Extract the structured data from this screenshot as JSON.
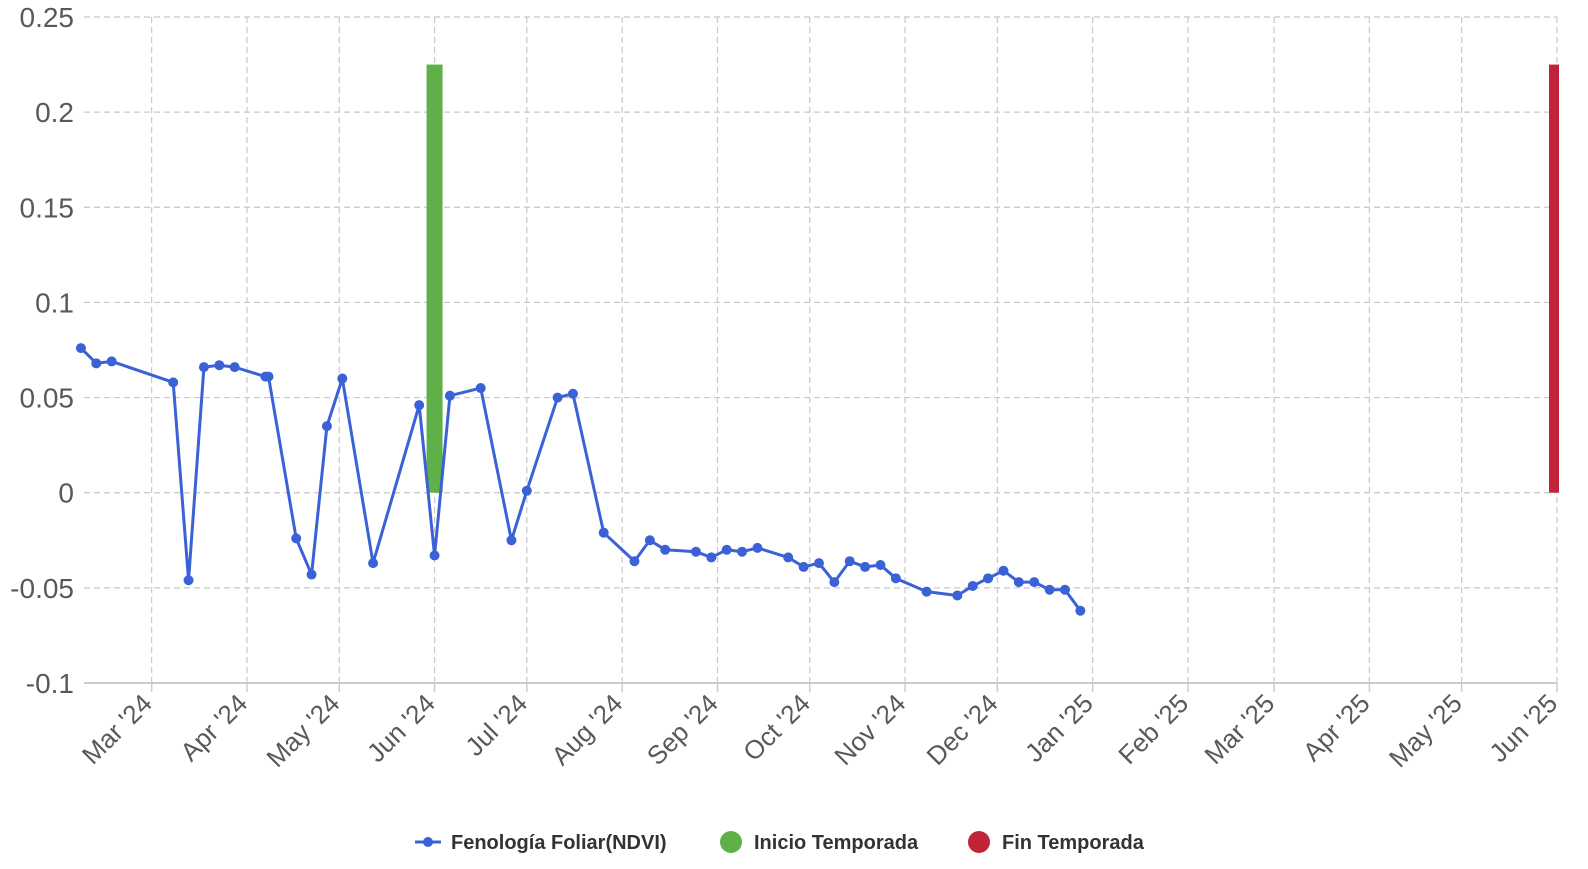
{
  "chart_data": {
    "type": "line",
    "ylim": [
      -0.1,
      0.25
    ],
    "yticks": [
      -0.1,
      -0.05,
      0,
      0.05,
      0.1,
      0.15,
      0.2,
      0.25
    ],
    "ytick_labels": [
      "-0.1",
      "-0.05",
      "0",
      "0.05",
      "0.1",
      "0.15",
      "0.2",
      "0.25"
    ],
    "xlim": [
      "2024-02-08",
      "2025-06-01"
    ],
    "xticks": [
      {
        "date": "2024-03-01",
        "label": "Mar '24"
      },
      {
        "date": "2024-04-01",
        "label": "Apr '24"
      },
      {
        "date": "2024-05-01",
        "label": "May '24"
      },
      {
        "date": "2024-06-01",
        "label": "Jun '24"
      },
      {
        "date": "2024-07-01",
        "label": "Jul '24"
      },
      {
        "date": "2024-08-01",
        "label": "Aug '24"
      },
      {
        "date": "2024-09-01",
        "label": "Sep '24"
      },
      {
        "date": "2024-10-01",
        "label": "Oct '24"
      },
      {
        "date": "2024-11-01",
        "label": "Nov '24"
      },
      {
        "date": "2024-12-01",
        "label": "Dec '24"
      },
      {
        "date": "2025-01-01",
        "label": "Jan '25"
      },
      {
        "date": "2025-02-01",
        "label": "Feb '25"
      },
      {
        "date": "2025-03-01",
        "label": "Mar '25"
      },
      {
        "date": "2025-04-01",
        "label": "Apr '25"
      },
      {
        "date": "2025-05-01",
        "label": "May '25"
      },
      {
        "date": "2025-06-01",
        "label": "Jun '25"
      }
    ],
    "grid": true,
    "legend_position": "bottom",
    "series": [
      {
        "name": "Fenología Foliar(NDVI)",
        "type": "line",
        "color": "#3a62d6",
        "points": [
          [
            "2024-02-07",
            0.076
          ],
          [
            "2024-02-12",
            0.068
          ],
          [
            "2024-02-17",
            0.069
          ],
          [
            "2024-03-08",
            0.058
          ],
          [
            "2024-03-13",
            -0.046
          ],
          [
            "2024-03-18",
            0.066
          ],
          [
            "2024-03-23",
            0.067
          ],
          [
            "2024-03-28",
            0.066
          ],
          [
            "2024-04-07",
            0.061
          ],
          [
            "2024-04-08",
            0.061
          ],
          [
            "2024-04-17",
            -0.024
          ],
          [
            "2024-04-22",
            -0.043
          ],
          [
            "2024-04-27",
            0.035
          ],
          [
            "2024-05-02",
            0.06
          ],
          [
            "2024-05-12",
            -0.037
          ],
          [
            "2024-05-27",
            0.046
          ],
          [
            "2024-06-01",
            -0.033
          ],
          [
            "2024-06-06",
            0.051
          ],
          [
            "2024-06-16",
            0.055
          ],
          [
            "2024-06-26",
            -0.025
          ],
          [
            "2024-07-01",
            0.001
          ],
          [
            "2024-07-11",
            0.05
          ],
          [
            "2024-07-16",
            0.052
          ],
          [
            "2024-07-26",
            -0.021
          ],
          [
            "2024-08-05",
            -0.036
          ],
          [
            "2024-08-10",
            -0.025
          ],
          [
            "2024-08-15",
            -0.03
          ],
          [
            "2024-08-25",
            -0.031
          ],
          [
            "2024-08-30",
            -0.034
          ],
          [
            "2024-09-04",
            -0.03
          ],
          [
            "2024-09-09",
            -0.031
          ],
          [
            "2024-09-14",
            -0.029
          ],
          [
            "2024-09-24",
            -0.034
          ],
          [
            "2024-09-29",
            -0.039
          ],
          [
            "2024-10-04",
            -0.037
          ],
          [
            "2024-10-09",
            -0.047
          ],
          [
            "2024-10-14",
            -0.036
          ],
          [
            "2024-10-19",
            -0.039
          ],
          [
            "2024-10-24",
            -0.038
          ],
          [
            "2024-10-29",
            -0.045
          ],
          [
            "2024-11-08",
            -0.052
          ],
          [
            "2024-11-18",
            -0.054
          ],
          [
            "2024-11-23",
            -0.049
          ],
          [
            "2024-11-28",
            -0.045
          ],
          [
            "2024-12-03",
            -0.041
          ],
          [
            "2024-12-08",
            -0.047
          ],
          [
            "2024-12-13",
            -0.047
          ],
          [
            "2024-12-18",
            -0.051
          ],
          [
            "2024-12-23",
            -0.051
          ],
          [
            "2024-12-28",
            -0.062
          ]
        ]
      },
      {
        "name": "Inicio Temporada",
        "type": "bar",
        "color": "#5fb048",
        "date": "2024-06-01",
        "from": 0,
        "to": 0.225
      },
      {
        "name": "Fin Temporada",
        "type": "bar",
        "color": "#c0233a",
        "date": "2025-06-01",
        "from": 0,
        "to": 0.225
      }
    ]
  }
}
